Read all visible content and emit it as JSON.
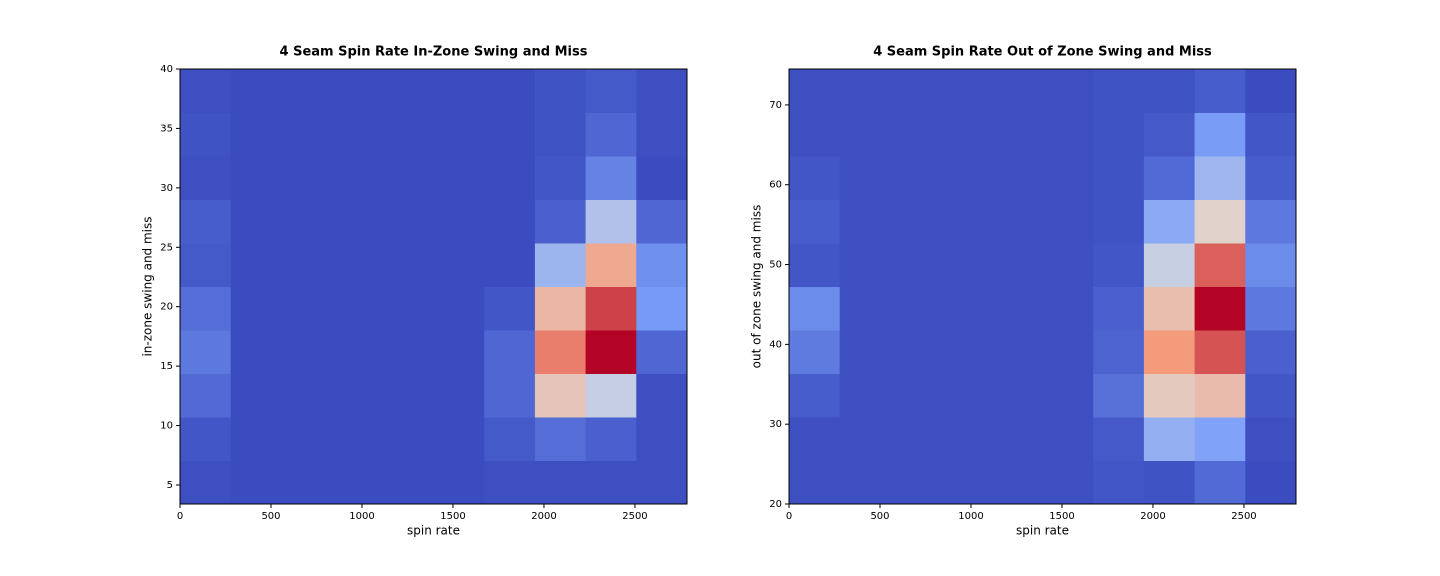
{
  "chart_data": [
    {
      "type": "heatmap",
      "title": "4 Seam Spin Rate In-Zone Swing and Miss",
      "xlabel": "spin rate",
      "ylabel": "in-zone swing and miss",
      "colormap": "coolwarm",
      "xbins": [
        0,
        278.6,
        557.2,
        835.8,
        1114.4,
        1393,
        1671.6,
        1950.2,
        2228.8,
        2507.4,
        2786
      ],
      "ybins": [
        3.4,
        7.06,
        10.72,
        14.38,
        18.04,
        21.7,
        25.36,
        29.02,
        32.68,
        36.34,
        40
      ],
      "xlim": [
        0,
        2786
      ],
      "ylim": [
        3.4,
        40
      ],
      "xticks": [
        0,
        500,
        1000,
        1500,
        2000,
        2500
      ],
      "yticks": [
        5,
        10,
        15,
        20,
        25,
        30,
        35,
        40
      ],
      "z": [
        [
          3,
          2,
          2,
          2,
          2,
          2,
          3,
          3,
          3,
          3
        ],
        [
          5,
          2,
          2,
          2,
          2,
          2,
          6,
          12,
          8,
          3
        ],
        [
          11,
          2,
          2,
          2,
          2,
          2,
          10,
          60,
          45,
          3
        ],
        [
          15,
          2,
          2,
          2,
          2,
          2,
          10,
          80,
          100,
          10
        ],
        [
          12,
          2,
          2,
          2,
          2,
          2,
          5,
          65,
          90,
          25
        ],
        [
          6,
          2,
          2,
          2,
          2,
          2,
          2,
          35,
          70,
          22
        ],
        [
          7,
          2,
          2,
          2,
          2,
          2,
          2,
          8,
          40,
          10
        ],
        [
          3,
          2,
          2,
          2,
          2,
          2,
          2,
          5,
          18,
          2
        ],
        [
          4,
          2,
          2,
          2,
          2,
          2,
          2,
          4,
          10,
          3
        ],
        [
          3,
          2,
          2,
          2,
          2,
          2,
          2,
          4,
          6,
          3
        ]
      ]
    },
    {
      "type": "heatmap",
      "title": "4 Seam Spin Rate Out of Zone Swing and Miss",
      "xlabel": "spin rate",
      "ylabel": "out of zone swing and miss",
      "colormap": "coolwarm",
      "xbins": [
        0,
        278.6,
        557.2,
        835.8,
        1114.4,
        1393,
        1671.6,
        1950.2,
        2228.8,
        2507.4,
        2786
      ],
      "ybins": [
        20,
        25.45,
        30.9,
        36.35,
        41.8,
        47.25,
        52.7,
        58.15,
        63.6,
        69.05,
        74.5
      ],
      "xlim": [
        0,
        2786
      ],
      "ylim": [
        20,
        74.5
      ],
      "xticks": [
        0,
        500,
        1000,
        1500,
        2000,
        2500
      ],
      "yticks": [
        20,
        30,
        40,
        50,
        60,
        70
      ],
      "z": [
        [
          2,
          2,
          2,
          2,
          2,
          2,
          4,
          3,
          10,
          1
        ],
        [
          2,
          2,
          2,
          2,
          2,
          2,
          5,
          32,
          27,
          2
        ],
        [
          6,
          2,
          2,
          2,
          2,
          2,
          12,
          58,
          63,
          4
        ],
        [
          15,
          2,
          2,
          2,
          2,
          2,
          8,
          75,
          87,
          7
        ],
        [
          20,
          2,
          2,
          2,
          2,
          2,
          7,
          62,
          100,
          14
        ],
        [
          4,
          2,
          2,
          2,
          2,
          2,
          4,
          45,
          85,
          20
        ],
        [
          6,
          2,
          2,
          2,
          2,
          2,
          3,
          30,
          55,
          14
        ],
        [
          4,
          2,
          2,
          2,
          2,
          2,
          3,
          10,
          35,
          6
        ],
        [
          2,
          2,
          2,
          2,
          2,
          2,
          3,
          5,
          25,
          4
        ],
        [
          2,
          2,
          2,
          2,
          2,
          2,
          3,
          3,
          6,
          1
        ]
      ]
    }
  ]
}
